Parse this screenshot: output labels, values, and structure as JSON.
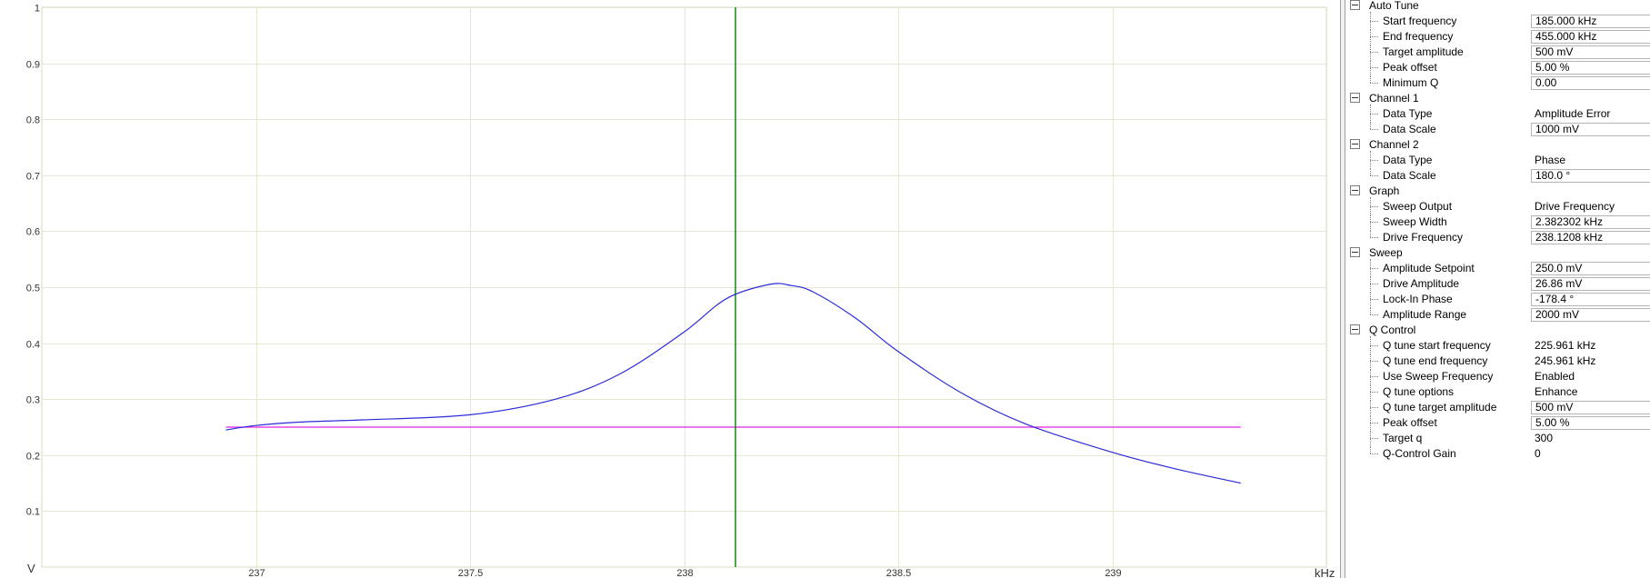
{
  "chart_data": {
    "type": "line",
    "xunit": "kHz",
    "yunit": "V",
    "xlim": [
      236.5,
      239.5
    ],
    "ylim": [
      0,
      1
    ],
    "xticks": [
      "237",
      "237.5",
      "238",
      "238.5",
      "239"
    ],
    "yticks": [
      "0.1",
      "0.2",
      "0.3",
      "0.4",
      "0.5",
      "0.6",
      "0.7",
      "0.8",
      "0.9",
      "1"
    ],
    "grid": true,
    "series": [
      {
        "color": "#2b2bd9",
        "x": [
          236.93,
          237.0,
          237.1,
          237.25,
          237.5,
          237.7,
          237.85,
          238.0,
          238.1,
          238.2,
          238.25,
          238.3,
          238.4,
          238.5,
          238.65,
          238.8,
          239.0,
          239.15,
          239.3
        ],
        "y": [
          0.245,
          0.253,
          0.259,
          0.263,
          0.272,
          0.3,
          0.345,
          0.42,
          0.48,
          0.505,
          0.503,
          0.492,
          0.445,
          0.385,
          0.31,
          0.255,
          0.205,
          0.175,
          0.15
        ]
      }
    ],
    "hline": {
      "y": 0.25,
      "x_start": 236.93,
      "x_end": 239.3,
      "color": "#e020e0"
    },
    "vline": {
      "x": 238.12,
      "color": "#008000"
    }
  },
  "panel": {
    "groups": [
      {
        "label": "Auto Tune",
        "items": [
          {
            "label": "Start frequency",
            "value": "185.000 kHz",
            "editable": true
          },
          {
            "label": "End frequency",
            "value": "455.000 kHz",
            "editable": true
          },
          {
            "label": "Target amplitude",
            "value": "500 mV",
            "editable": true
          },
          {
            "label": "Peak offset",
            "value": "5.00 %",
            "editable": true
          },
          {
            "label": "Minimum Q",
            "value": "0.00",
            "editable": true
          }
        ]
      },
      {
        "label": "Channel 1",
        "items": [
          {
            "label": "Data Type",
            "value": "Amplitude Error",
            "editable": false
          },
          {
            "label": "Data Scale",
            "value": "1000 mV",
            "editable": true
          }
        ]
      },
      {
        "label": "Channel 2",
        "items": [
          {
            "label": "Data Type",
            "value": "Phase",
            "editable": false
          },
          {
            "label": "Data Scale",
            "value": "180.0 °",
            "editable": true
          }
        ]
      },
      {
        "label": "Graph",
        "items": [
          {
            "label": "Sweep Output",
            "value": "Drive Frequency",
            "editable": false
          },
          {
            "label": "Sweep Width",
            "value": "2.382302 kHz",
            "editable": true
          },
          {
            "label": "Drive Frequency",
            "value": "238.1208 kHz",
            "editable": true
          }
        ]
      },
      {
        "label": "Sweep",
        "items": [
          {
            "label": "Amplitude Setpoint",
            "value": "250.0 mV",
            "editable": true
          },
          {
            "label": "Drive Amplitude",
            "value": "26.86 mV",
            "editable": true
          },
          {
            "label": "Lock-In Phase",
            "value": "-178.4 °",
            "editable": true
          },
          {
            "label": "Amplitude Range",
            "value": "2000 mV",
            "editable": true
          }
        ]
      },
      {
        "label": "Q Control",
        "items": [
          {
            "label": "Q tune start frequency",
            "value": "225.961 kHz",
            "editable": false
          },
          {
            "label": "Q tune end frequency",
            "value": "245.961 kHz",
            "editable": false
          },
          {
            "label": "Use Sweep Frequency",
            "value": "Enabled",
            "editable": false
          },
          {
            "label": "Q tune options",
            "value": "Enhance",
            "editable": false
          },
          {
            "label": "Q tune target amplitude",
            "value": "500 mV",
            "editable": true
          },
          {
            "label": "Peak offset",
            "value": "5.00 %",
            "editable": true
          },
          {
            "label": "Target q",
            "value": "300",
            "editable": false
          },
          {
            "label": "Q-Control Gain",
            "value": "0",
            "editable": false
          }
        ]
      }
    ]
  }
}
